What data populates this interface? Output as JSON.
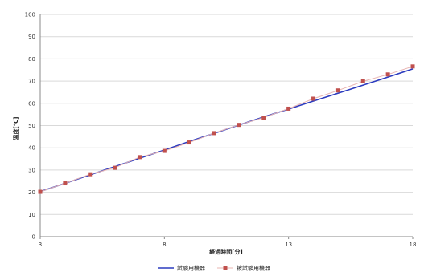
{
  "chart_data": {
    "type": "line",
    "xlabel": "経過時間[分]",
    "ylabel": "温度[℃]",
    "xlim": [
      3,
      18
    ],
    "ylim": [
      0,
      100
    ],
    "x_ticks": [
      3,
      8,
      13,
      18
    ],
    "y_ticks": [
      0,
      10,
      20,
      30,
      40,
      50,
      60,
      70,
      80,
      90,
      100
    ],
    "grid": "horizontal",
    "legend_position": "bottom",
    "series": [
      {
        "name": "試験用機器",
        "color": "#2b3bbf",
        "marker": "none",
        "x": [
          3,
          4,
          5,
          6,
          7,
          8,
          9,
          10,
          11,
          12,
          13,
          14,
          15,
          16,
          17,
          18
        ],
        "y": [
          20.3,
          24.0,
          27.8,
          31.5,
          35.3,
          39.0,
          42.8,
          46.5,
          50.2,
          53.9,
          57.4,
          61.0,
          64.6,
          68.2,
          71.8,
          75.5
        ]
      },
      {
        "name": "被試験用機器",
        "color": "#c0504d",
        "marker": "square",
        "x": [
          3,
          4,
          5,
          6,
          7,
          8,
          9,
          10,
          11,
          12,
          13,
          14,
          15,
          16,
          17,
          18
        ],
        "y": [
          20.2,
          24.0,
          28.1,
          31.0,
          35.8,
          38.6,
          42.4,
          46.6,
          50.3,
          53.6,
          57.6,
          62.1,
          65.8,
          69.9,
          73.0,
          76.6
        ]
      }
    ]
  }
}
